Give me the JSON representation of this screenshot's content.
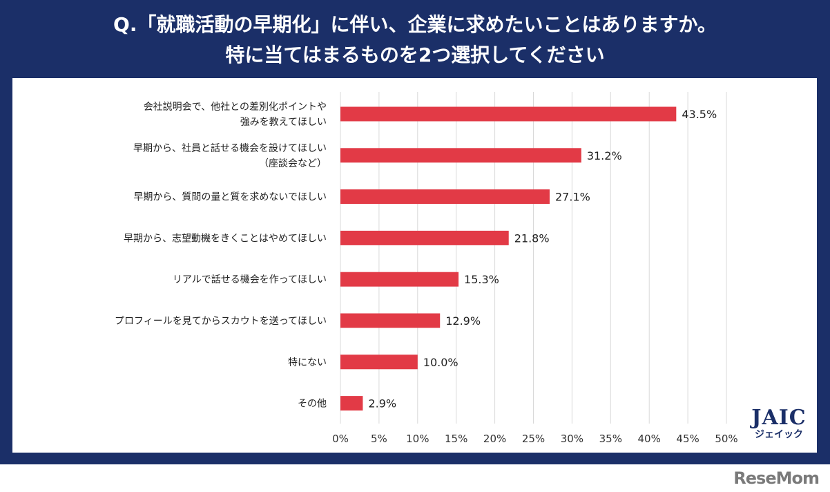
{
  "title_lines": [
    "Q.「就職活動の早期化」に伴い、企業に求めたいことはありますか。",
    "特に当てはまるものを2つ選択してください"
  ],
  "chart_data": {
    "type": "bar",
    "orientation": "horizontal",
    "categories": [
      [
        "会社説明会で、他社との差別化ポイントや",
        "強みを教えてほしい"
      ],
      [
        "早期から、社員と話せる機会を設けてほしい",
        "（座談会など）"
      ],
      [
        "早期から、質問の量と質を求めないでほしい"
      ],
      [
        "早期から、志望動機をきくことはやめてほしい"
      ],
      [
        "リアルで話せる機会を作ってほしい"
      ],
      [
        "プロフィールを見てからスカウトを送ってほしい"
      ],
      [
        "特にない"
      ],
      [
        "その他"
      ]
    ],
    "values": [
      43.5,
      31.2,
      27.1,
      21.8,
      15.3,
      12.9,
      10.0,
      2.9
    ],
    "data_labels": [
      "43.5%",
      "31.2%",
      "27.1%",
      "21.8%",
      "15.3%",
      "12.9%",
      "10.0%",
      "2.9%"
    ],
    "xlim": [
      0,
      50
    ],
    "xticks": [
      0,
      5,
      10,
      15,
      20,
      25,
      30,
      35,
      40,
      45,
      50
    ],
    "xtick_labels": [
      "0%",
      "5%",
      "10%",
      "15%",
      "20%",
      "25%",
      "30%",
      "35%",
      "40%",
      "45%",
      "50%"
    ],
    "grid": true,
    "bar_color": "#e23a46"
  },
  "logo": {
    "name": "JAIC",
    "sub": "ジェイック"
  },
  "watermark": "ReseMom"
}
